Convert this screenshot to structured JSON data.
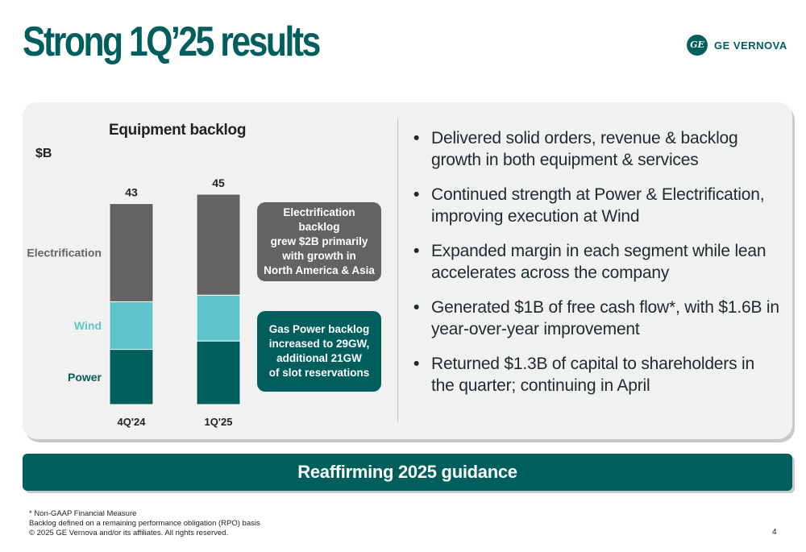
{
  "title": "Strong 1Q’25 results",
  "logo": {
    "text": "GE VERNOVA",
    "mark": "GE"
  },
  "chart_data": {
    "type": "bar",
    "stacked": true,
    "title": "Equipment backlog",
    "unit": "$B",
    "categories": [
      "4Q'24",
      "1Q'25"
    ],
    "totals": [
      43,
      45
    ],
    "series": [
      {
        "name": "Power",
        "values": [
          11.8,
          13.6
        ],
        "color": "#005e5d"
      },
      {
        "name": "Wind",
        "values": [
          10.2,
          9.8
        ],
        "color": "#5fc4c9"
      },
      {
        "name": "Electrification",
        "values": [
          21.0,
          21.6
        ],
        "color": "#636363"
      }
    ],
    "ylim": [
      0,
      45
    ]
  },
  "callouts": {
    "electrification": [
      "Electrification backlog",
      "grew $2B primarily",
      "with growth in",
      "North America & Asia"
    ],
    "gas": [
      "Gas Power backlog",
      "increased to 29GW,",
      "additional 21GW",
      "of slot reservations"
    ]
  },
  "bullets": [
    "Delivered solid orders, revenue & backlog growth in both equipment & services",
    "Continued strength at Power & Electrification, improving execution at Wind",
    "Expanded margin in each segment while lean accelerates across the company",
    "Generated $1B of free cash flow*, with $1.6B in year-over-year improvement",
    "Returned $1.3B of capital to shareholders in the quarter; continuing in April"
  ],
  "banner": "Reaffirming 2025 guidance",
  "footnotes": [
    "* Non-GAAP Financial Measure",
    "Backlog defined on a remaining performance obligation (RPO) basis",
    "© 2025 GE Vernova and/or its affiliates. All rights reserved."
  ],
  "page_number": "4",
  "colors": {
    "brand": "#005e5d",
    "wind": "#5fc4c9",
    "electrification": "#636363",
    "panel": "#f1f1f1"
  }
}
